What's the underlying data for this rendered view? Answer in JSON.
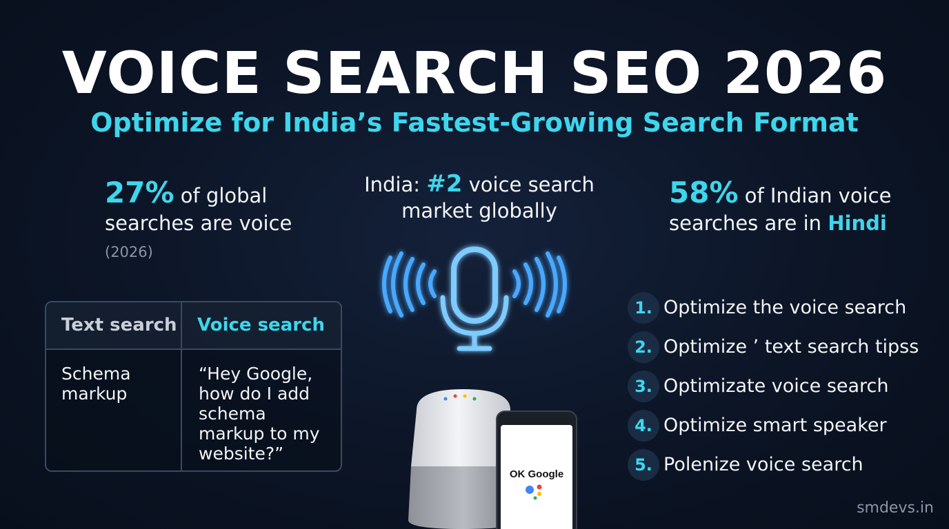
{
  "title": "VOICE SEARCH SEO 2026",
  "subtitle": "Optimize for India’s Fastest-Growing Search Format",
  "stats": {
    "left": {
      "value": "27%",
      "text_line1": " of global",
      "text_line2": "searches are voice",
      "note": "(2026)"
    },
    "center": {
      "prefix": "India: ",
      "value": "#2",
      "text_line1": " voice search",
      "text_line2": "market globally"
    },
    "right": {
      "value": "58%",
      "text_line1": " of Indian voice",
      "text_line2": "searches are in ",
      "highlight": "Hindi"
    }
  },
  "comparison": {
    "headers": [
      "Text search",
      "Voice search"
    ],
    "text_example": "Schema markup",
    "voice_example": "“Hey Google, how do I add schema markup to my website?”"
  },
  "steps": [
    {
      "num": "1.",
      "text": "Optimize the voice search"
    },
    {
      "num": "2.",
      "text": "Optimize ’ text search tipss"
    },
    {
      "num": "3.",
      "text": "Optimizate voice search"
    },
    {
      "num": "4.",
      "text": "Optimize smart speaker"
    },
    {
      "num": "5.",
      "text": "Polenize voice search"
    }
  ],
  "phone_label": "OK Google",
  "watermark": "smdevs.in",
  "icons": [
    "microphone-icon",
    "sound-wave-icon",
    "smart-speaker-icon",
    "smartphone-icon",
    "google-assistant-icon"
  ],
  "colors": {
    "accent": "#3ed6ec",
    "background": "#0c1526",
    "mic_glow": "#4aa8ff"
  }
}
